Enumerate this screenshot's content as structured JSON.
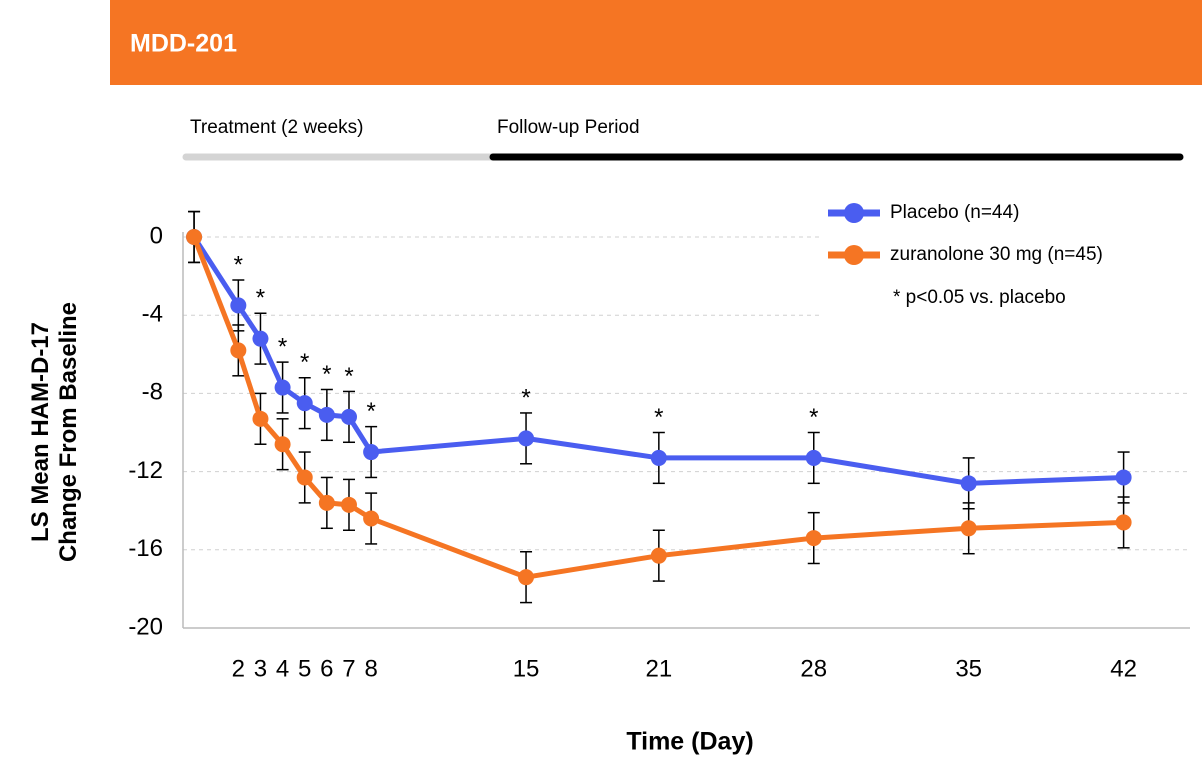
{
  "chart_data": {
    "type": "line",
    "title": "MDD-201",
    "periods": [
      {
        "label": "Treatment (2 weeks)",
        "color": "#d4d4d4"
      },
      {
        "label": "Follow-up Period",
        "color": "#000000"
      }
    ],
    "ylabel": [
      "LS Mean HAM-D-17",
      "Change From Baseline"
    ],
    "xlabel": "Time (Day)",
    "x": [
      0,
      2,
      3,
      4,
      5,
      6,
      7,
      8,
      15,
      21,
      28,
      35,
      42
    ],
    "series": [
      {
        "name": "Placebo (n=44)",
        "color": "#4a5df0",
        "values": [
          0,
          -3.5,
          -5.2,
          -7.7,
          -8.5,
          -9.1,
          -9.2,
          -11.0,
          -10.3,
          -11.3,
          -11.3,
          -12.6,
          -12.3
        ],
        "errors": [
          1.3,
          1.3,
          1.3,
          1.3,
          1.3,
          1.3,
          1.3,
          1.3,
          1.3,
          1.3,
          1.3,
          1.3,
          1.3
        ]
      },
      {
        "name": "zuranolone 30 mg (n=45)",
        "color": "#f57523",
        "values": [
          0,
          -5.8,
          -9.3,
          -10.6,
          -12.3,
          -13.6,
          -13.7,
          -14.4,
          -17.4,
          -16.3,
          -15.4,
          -14.9,
          -14.6
        ],
        "errors": [
          1.3,
          1.3,
          1.3,
          1.3,
          1.3,
          1.3,
          1.3,
          1.3,
          1.3,
          1.3,
          1.3,
          1.3,
          1.3
        ]
      }
    ],
    "significance": {
      "label": "*",
      "days": [
        2,
        3,
        4,
        5,
        6,
        7,
        8,
        15,
        21,
        28
      ]
    },
    "note": "* p<0.05 vs. placebo",
    "xlim": [
      -0.5,
      45
    ],
    "xticks": [
      2,
      3,
      4,
      5,
      6,
      7,
      8,
      15,
      21,
      28,
      35,
      42
    ],
    "ylim": [
      -20,
      0
    ],
    "yticks": [
      0,
      -4,
      -8,
      -12,
      -16,
      -20
    ],
    "grid": true,
    "header_color": "#f57523"
  }
}
